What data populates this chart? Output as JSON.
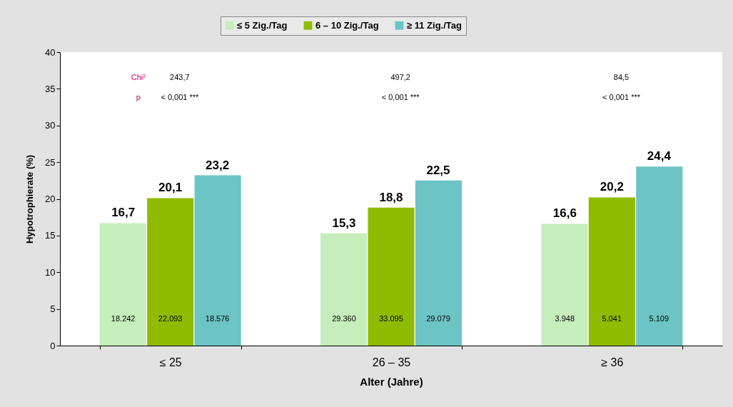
{
  "chart_data": {
    "type": "bar",
    "xlabel": "Alter (Jahre)",
    "ylabel": "Hypotrophierate (%)",
    "categories": [
      "≤ 25",
      "26 – 35",
      "≥ 36"
    ],
    "series": [
      {
        "name": "≤ 5 Zig./Tag",
        "color": "#c6edbc",
        "values": [
          16.7,
          15.3,
          16.6
        ],
        "value_labels": [
          "16,7",
          "15,3",
          "16,6"
        ]
      },
      {
        "name": "6 – 10 Zig./Tag",
        "color": "#8fbc00",
        "values": [
          20.1,
          18.8,
          20.2
        ],
        "value_labels": [
          "20,1",
          "18,8",
          "20,2"
        ]
      },
      {
        "name": "≥ 11 Zig./Tag",
        "color": "#6cc4c4",
        "values": [
          23.2,
          22.5,
          24.4
        ],
        "value_labels": [
          "23,2",
          "22,5",
          "24,4"
        ]
      }
    ],
    "ylim": [
      0,
      40
    ],
    "yticks": [
      0,
      5,
      10,
      15,
      20,
      25,
      30,
      35,
      40
    ],
    "grid": false,
    "legend": "top",
    "annotations": [
      "Chi²",
      "p",
      "243,7",
      "< 0,001 ***",
      "497,2",
      "< 0,001 ***",
      "84,5",
      "< 0,001 ***",
      "18.242",
      "22.093",
      "18.576",
      "29.360",
      "33.095",
      "29.079",
      "3.948",
      "5.041",
      "5.109"
    ]
  }
}
